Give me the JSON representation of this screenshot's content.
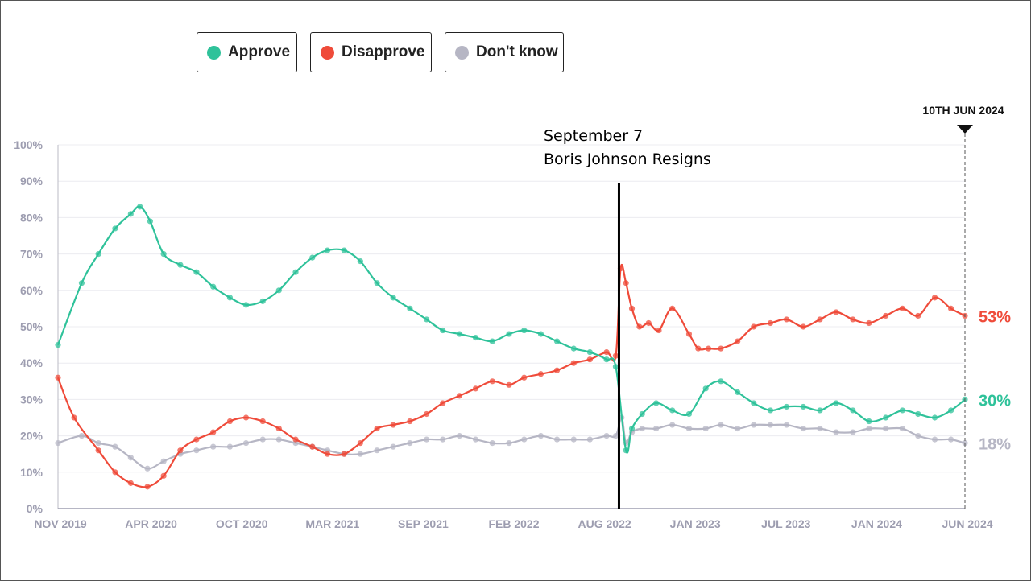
{
  "legend": [
    {
      "label": "Approve",
      "color": "#2fc29a"
    },
    {
      "label": "Disapprove",
      "color": "#ef4b3a"
    },
    {
      "label": "Don't know",
      "color": "#b6b6c4"
    }
  ],
  "annotation": {
    "line1": "September 7",
    "line2": "Boris Johnson Resigns"
  },
  "end_marker_label": "10TH JUN 2024",
  "chart_data": {
    "type": "line",
    "title": "",
    "xlabel": "",
    "ylabel": "",
    "ylim": [
      0,
      100
    ],
    "y_ticks": [
      "0%",
      "10%",
      "20%",
      "30%",
      "40%",
      "50%",
      "60%",
      "70%",
      "80%",
      "90%",
      "100%"
    ],
    "x_ticks": [
      "NOV 2019",
      "APR 2020",
      "OCT 2020",
      "MAR 2021",
      "SEP 2021",
      "FEB 2022",
      "AUG 2022",
      "JAN 2023",
      "JUL 2023",
      "JAN 2024",
      "JUN 2024"
    ],
    "x_range": [
      "2019-11-01",
      "2024-06-10"
    ],
    "grid": true,
    "legend_position": "top-left",
    "event": {
      "date": "2022-09-07",
      "label": "September 7 Boris Johnson Resigns"
    },
    "end_labels": {
      "Approve": "30%",
      "Disapprove": "53%",
      "Don't know": "18%"
    },
    "series": [
      {
        "name": "Approve",
        "color": "#2fc29a",
        "x": [
          "2019-11-01",
          "2019-12-15",
          "2020-01-15",
          "2020-02-15",
          "2020-03-15",
          "2020-04-01",
          "2020-04-20",
          "2020-05-15",
          "2020-06-15",
          "2020-07-15",
          "2020-08-15",
          "2020-09-15",
          "2020-10-15",
          "2020-11-15",
          "2020-12-15",
          "2021-01-15",
          "2021-02-15",
          "2021-03-15",
          "2021-04-15",
          "2021-05-15",
          "2021-06-15",
          "2021-07-15",
          "2021-08-15",
          "2021-09-15",
          "2021-10-15",
          "2021-11-15",
          "2021-12-15",
          "2022-01-15",
          "2022-02-15",
          "2022-03-15",
          "2022-04-15",
          "2022-05-15",
          "2022-06-15",
          "2022-07-15",
          "2022-08-15",
          "2022-09-01",
          "2022-09-20",
          "2022-10-01",
          "2022-10-20",
          "2022-11-15",
          "2022-12-15",
          "2023-01-15",
          "2023-02-15",
          "2023-03-15",
          "2023-04-15",
          "2023-05-15",
          "2023-06-15",
          "2023-07-15",
          "2023-08-15",
          "2023-09-15",
          "2023-10-15",
          "2023-11-15",
          "2023-12-15",
          "2024-01-15",
          "2024-02-15",
          "2024-03-15",
          "2024-04-15",
          "2024-05-15",
          "2024-06-10"
        ],
        "values": [
          45,
          62,
          70,
          77,
          81,
          83,
          79,
          70,
          67,
          65,
          61,
          58,
          56,
          57,
          60,
          65,
          69,
          71,
          71,
          68,
          62,
          58,
          55,
          52,
          49,
          48,
          47,
          46,
          48,
          49,
          48,
          46,
          44,
          43,
          41,
          39,
          16,
          22,
          26,
          29,
          27,
          26,
          33,
          35,
          32,
          29,
          27,
          28,
          28,
          27,
          29,
          27,
          24,
          25,
          27,
          26,
          25,
          27,
          30
        ]
      },
      {
        "name": "Disapprove",
        "color": "#ef4b3a",
        "x": [
          "2019-11-01",
          "2019-12-01",
          "2020-01-15",
          "2020-02-15",
          "2020-03-15",
          "2020-04-15",
          "2020-05-15",
          "2020-06-15",
          "2020-07-15",
          "2020-08-15",
          "2020-09-15",
          "2020-10-15",
          "2020-11-15",
          "2020-12-15",
          "2021-01-15",
          "2021-02-15",
          "2021-03-15",
          "2021-04-15",
          "2021-05-15",
          "2021-06-15",
          "2021-07-15",
          "2021-08-15",
          "2021-09-15",
          "2021-10-15",
          "2021-11-15",
          "2021-12-15",
          "2022-01-15",
          "2022-02-15",
          "2022-03-15",
          "2022-04-15",
          "2022-05-15",
          "2022-06-15",
          "2022-07-15",
          "2022-08-15",
          "2022-09-01",
          "2022-09-10",
          "2022-09-20",
          "2022-10-01",
          "2022-10-15",
          "2022-11-01",
          "2022-11-20",
          "2022-12-15",
          "2023-01-15",
          "2023-02-01",
          "2023-02-20",
          "2023-03-15",
          "2023-04-15",
          "2023-05-15",
          "2023-06-15",
          "2023-07-15",
          "2023-08-15",
          "2023-09-15",
          "2023-10-15",
          "2023-11-15",
          "2023-12-15",
          "2024-01-15",
          "2024-02-15",
          "2024-03-15",
          "2024-04-15",
          "2024-05-15",
          "2024-06-10"
        ],
        "values": [
          36,
          25,
          16,
          10,
          7,
          6,
          9,
          16,
          19,
          21,
          24,
          25,
          24,
          22,
          19,
          17,
          15,
          15,
          18,
          22,
          23,
          24,
          26,
          29,
          31,
          33,
          35,
          34,
          36,
          37,
          38,
          40,
          41,
          43,
          42,
          66,
          62,
          55,
          50,
          51,
          49,
          55,
          48,
          44,
          44,
          44,
          46,
          50,
          51,
          52,
          50,
          52,
          54,
          52,
          51,
          53,
          55,
          53,
          58,
          55,
          53
        ]
      },
      {
        "name": "Don't know",
        "color": "#b6b6c4",
        "x": [
          "2019-11-01",
          "2019-12-15",
          "2020-01-15",
          "2020-02-15",
          "2020-03-15",
          "2020-04-15",
          "2020-05-15",
          "2020-06-15",
          "2020-07-15",
          "2020-08-15",
          "2020-09-15",
          "2020-10-15",
          "2020-11-15",
          "2020-12-15",
          "2021-01-15",
          "2021-02-15",
          "2021-03-15",
          "2021-04-15",
          "2021-05-15",
          "2021-06-15",
          "2021-07-15",
          "2021-08-15",
          "2021-09-15",
          "2021-10-15",
          "2021-11-15",
          "2021-12-15",
          "2022-01-15",
          "2022-02-15",
          "2022-03-15",
          "2022-04-15",
          "2022-05-15",
          "2022-06-15",
          "2022-07-15",
          "2022-08-15",
          "2022-09-01",
          "2022-09-12",
          "2022-09-20",
          "2022-10-01",
          "2022-10-20",
          "2022-11-15",
          "2022-12-15",
          "2023-01-15",
          "2023-02-15",
          "2023-03-15",
          "2023-04-15",
          "2023-05-15",
          "2023-06-15",
          "2023-07-15",
          "2023-08-15",
          "2023-09-15",
          "2023-10-15",
          "2023-11-15",
          "2023-12-15",
          "2024-01-15",
          "2024-02-15",
          "2024-03-15",
          "2024-04-15",
          "2024-05-15",
          "2024-06-10"
        ],
        "values": [
          18,
          20,
          18,
          17,
          14,
          11,
          13,
          15,
          16,
          17,
          17,
          18,
          19,
          19,
          18,
          17,
          16,
          15,
          15,
          16,
          17,
          18,
          19,
          19,
          20,
          19,
          18,
          18,
          19,
          20,
          19,
          19,
          19,
          20,
          20,
          25,
          18,
          21,
          22,
          22,
          23,
          22,
          22,
          23,
          22,
          23,
          23,
          23,
          22,
          22,
          21,
          21,
          22,
          22,
          22,
          20,
          19,
          19,
          18
        ]
      }
    ]
  }
}
